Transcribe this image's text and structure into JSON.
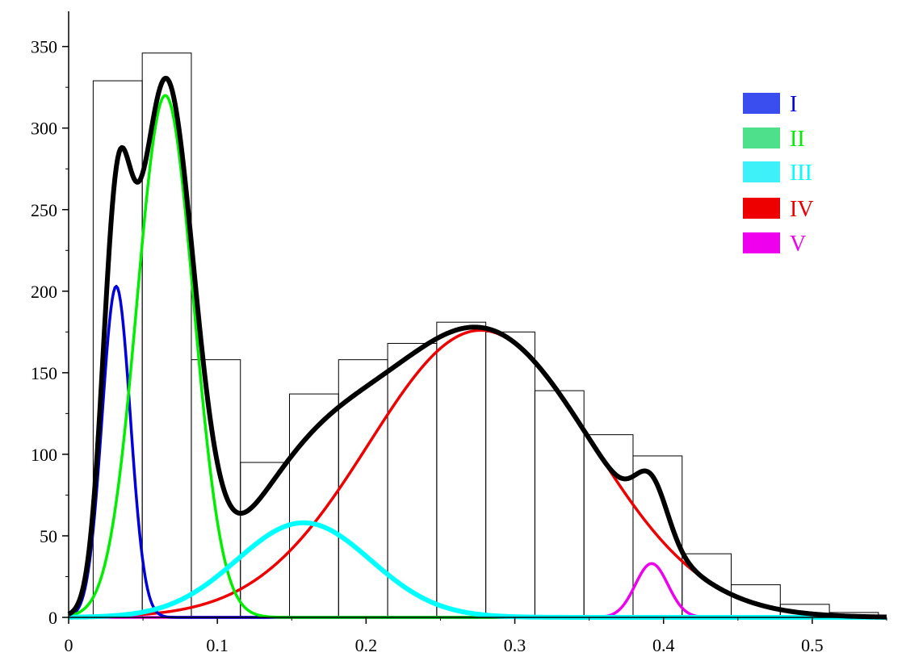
{
  "chart_data": {
    "type": "bar",
    "title": "",
    "xlabel": "",
    "ylabel": "",
    "xlim": [
      0,
      0.55
    ],
    "ylim": [
      0,
      370
    ],
    "xticks": [
      0,
      0.1,
      0.2,
      0.3,
      0.4,
      0.5
    ],
    "xtick_labels": [
      "0",
      "0.1",
      "0.2",
      "0.3",
      "0.4",
      "0.5"
    ],
    "yticks": [
      0,
      50,
      100,
      150,
      200,
      250,
      300,
      350
    ],
    "ytick_labels": [
      "0",
      "50",
      "100",
      "150",
      "200",
      "250",
      "300",
      "350"
    ],
    "grid": false,
    "legend_position": "top-right",
    "histogram": {
      "bin_edges": [
        0.0165,
        0.0495,
        0.0825,
        0.1155,
        0.1485,
        0.1815,
        0.2145,
        0.2475,
        0.2805,
        0.3135,
        0.3465,
        0.3795,
        0.4125,
        0.4455,
        0.4785,
        0.5115,
        0.5445
      ],
      "counts": [
        329,
        346,
        158,
        95,
        137,
        158,
        168,
        181,
        175,
        139,
        112,
        99,
        39,
        20,
        8,
        3
      ]
    },
    "components": [
      {
        "name": "I",
        "color": "#0000dd",
        "legend_color": "#3a4ef0",
        "amplitude": 203,
        "mean": 0.032,
        "sigma": 0.0095
      },
      {
        "name": "II",
        "color": "#00ee00",
        "legend_color": "#4ee08a",
        "amplitude": 320,
        "mean": 0.065,
        "sigma": 0.019
      },
      {
        "name": "III",
        "color": "#00ffff",
        "legend_color": "#3ef0f8",
        "amplitude": 58,
        "mean": 0.158,
        "sigma": 0.045
      },
      {
        "name": "IV",
        "color": "#ee0000",
        "legend_color": "#ee0000",
        "amplitude": 176,
        "mean": 0.277,
        "sigma": 0.075
      },
      {
        "name": "V",
        "color": "#ee00ee",
        "legend_color": "#ee00ee",
        "amplitude": 33,
        "mean": 0.392,
        "sigma": 0.011
      }
    ],
    "total_curve_color": "#000000"
  }
}
